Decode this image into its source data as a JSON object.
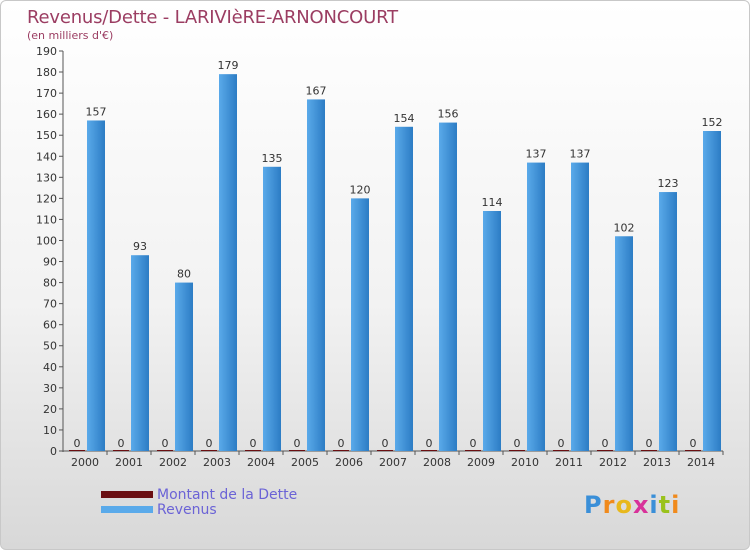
{
  "header": {
    "title": "Revenus/Dette - LARIVIèRE-ARNONCOURT",
    "subtitle": "(en milliers d'€)"
  },
  "legend": {
    "debt_label": "Montant de la Dette",
    "revenue_label": "Revenus"
  },
  "logo": {
    "text": "Proxiti"
  },
  "colors": {
    "debt": "#6b0f12",
    "revenue_light": "#5aaaea",
    "revenue_dark": "#2c7cc4",
    "title": "#9b3d62",
    "legend_text": "#6b63d6"
  },
  "chart_data": {
    "type": "bar",
    "categories": [
      "2000",
      "2001",
      "2002",
      "2003",
      "2004",
      "2005",
      "2006",
      "2007",
      "2008",
      "2009",
      "2010",
      "2011",
      "2012",
      "2013",
      "2014"
    ],
    "series": [
      {
        "name": "Montant de la Dette",
        "values": [
          0,
          0,
          0,
          0,
          0,
          0,
          0,
          0,
          0,
          0,
          0,
          0,
          0,
          0,
          0
        ]
      },
      {
        "name": "Revenus",
        "values": [
          157,
          93,
          80,
          179,
          135,
          167,
          120,
          154,
          156,
          114,
          137,
          137,
          102,
          123,
          152
        ]
      }
    ],
    "ylim": [
      0,
      190
    ],
    "yticks": [
      0,
      10,
      20,
      30,
      40,
      50,
      60,
      70,
      80,
      90,
      100,
      110,
      120,
      130,
      140,
      150,
      160,
      170,
      180,
      190
    ],
    "grid": false,
    "legend_position": "bottom-left"
  }
}
